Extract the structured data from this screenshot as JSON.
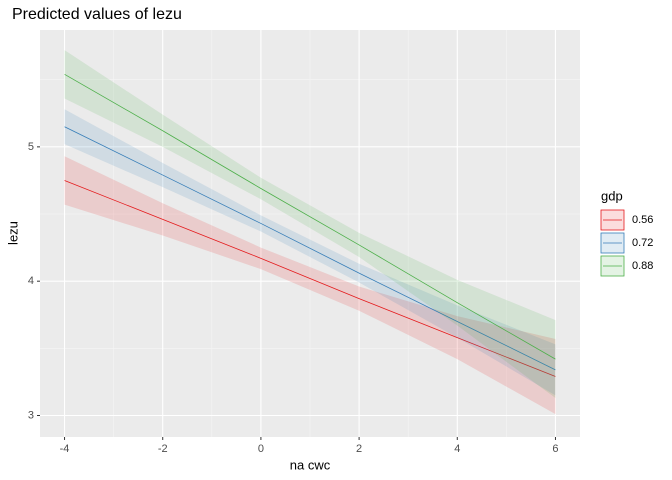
{
  "chart_data": {
    "type": "line",
    "title": "Predicted values of lezu",
    "x_label": "na cwc",
    "y_label": "lezu",
    "legend_title": "gdp",
    "x": [
      -4,
      -2,
      0,
      2,
      4,
      6
    ],
    "series": [
      {
        "name": "0.56",
        "color": "#e41a1c",
        "values": [
          4.75,
          4.46,
          4.17,
          3.87,
          3.58,
          3.29
        ],
        "lower": [
          4.57,
          4.34,
          4.09,
          3.78,
          3.42,
          3.01
        ],
        "upper": [
          4.93,
          4.58,
          4.25,
          3.96,
          3.74,
          3.57
        ]
      },
      {
        "name": "0.72",
        "color": "#377eb8",
        "values": [
          5.15,
          4.79,
          4.43,
          4.06,
          3.7,
          3.34
        ],
        "lower": [
          5.02,
          4.7,
          4.37,
          3.99,
          3.58,
          3.15
        ],
        "upper": [
          5.28,
          4.88,
          4.49,
          4.13,
          3.82,
          3.53
        ]
      },
      {
        "name": "0.88",
        "color": "#4daf4a",
        "values": [
          5.54,
          5.12,
          4.69,
          4.27,
          3.84,
          3.42
        ],
        "lower": [
          5.36,
          5.0,
          4.61,
          4.18,
          3.67,
          3.13
        ],
        "upper": [
          5.72,
          5.24,
          4.77,
          4.36,
          4.01,
          3.71
        ]
      }
    ],
    "xlim": [
      -4.5,
      6.5
    ],
    "ylim": [
      2.84,
      5.87
    ],
    "xticks": [
      -4,
      -2,
      0,
      2,
      4,
      6
    ],
    "yticks": [
      3,
      4,
      5
    ],
    "grid": true,
    "legend_position": "right"
  }
}
